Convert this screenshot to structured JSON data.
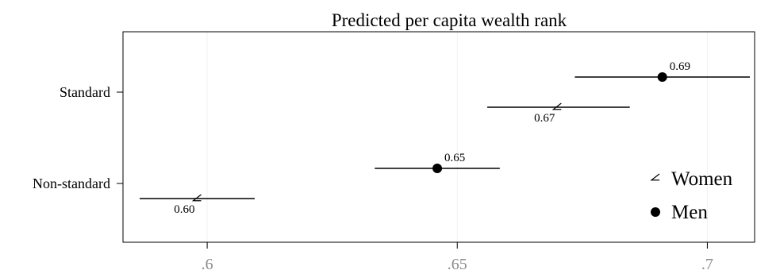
{
  "chart_data": {
    "type": "scatter",
    "title": "Predicted per capita wealth rank",
    "xlabel": "",
    "ylabel": "",
    "categories": [
      "Standard",
      "Non-standard"
    ],
    "xlim": [
      0.5865,
      0.7085
    ],
    "x_ticks": [
      {
        "value": 0.6,
        "label": ".6"
      },
      {
        "value": 0.65,
        "label": ".65"
      },
      {
        "value": 0.7,
        "label": ".7"
      }
    ],
    "grid": true,
    "legend_position": "bottom-right",
    "series": [
      {
        "name": "Women",
        "marker": "angle",
        "color": "#000000",
        "points": [
          {
            "category": "Standard",
            "value": 0.67,
            "ci": [
              0.656,
              0.6845
            ],
            "label": "0.67"
          },
          {
            "category": "Non-standard",
            "value": 0.598,
            "ci": [
              0.5865,
              0.6095
            ],
            "label": "0.60"
          }
        ]
      },
      {
        "name": "Men",
        "marker": "circle",
        "color": "#000000",
        "points": [
          {
            "category": "Standard",
            "value": 0.691,
            "ci": [
              0.6735,
              0.7085
            ],
            "label": "0.69"
          },
          {
            "category": "Non-standard",
            "value": 0.646,
            "ci": [
              0.6335,
              0.6585
            ],
            "label": "0.65"
          }
        ]
      }
    ]
  }
}
